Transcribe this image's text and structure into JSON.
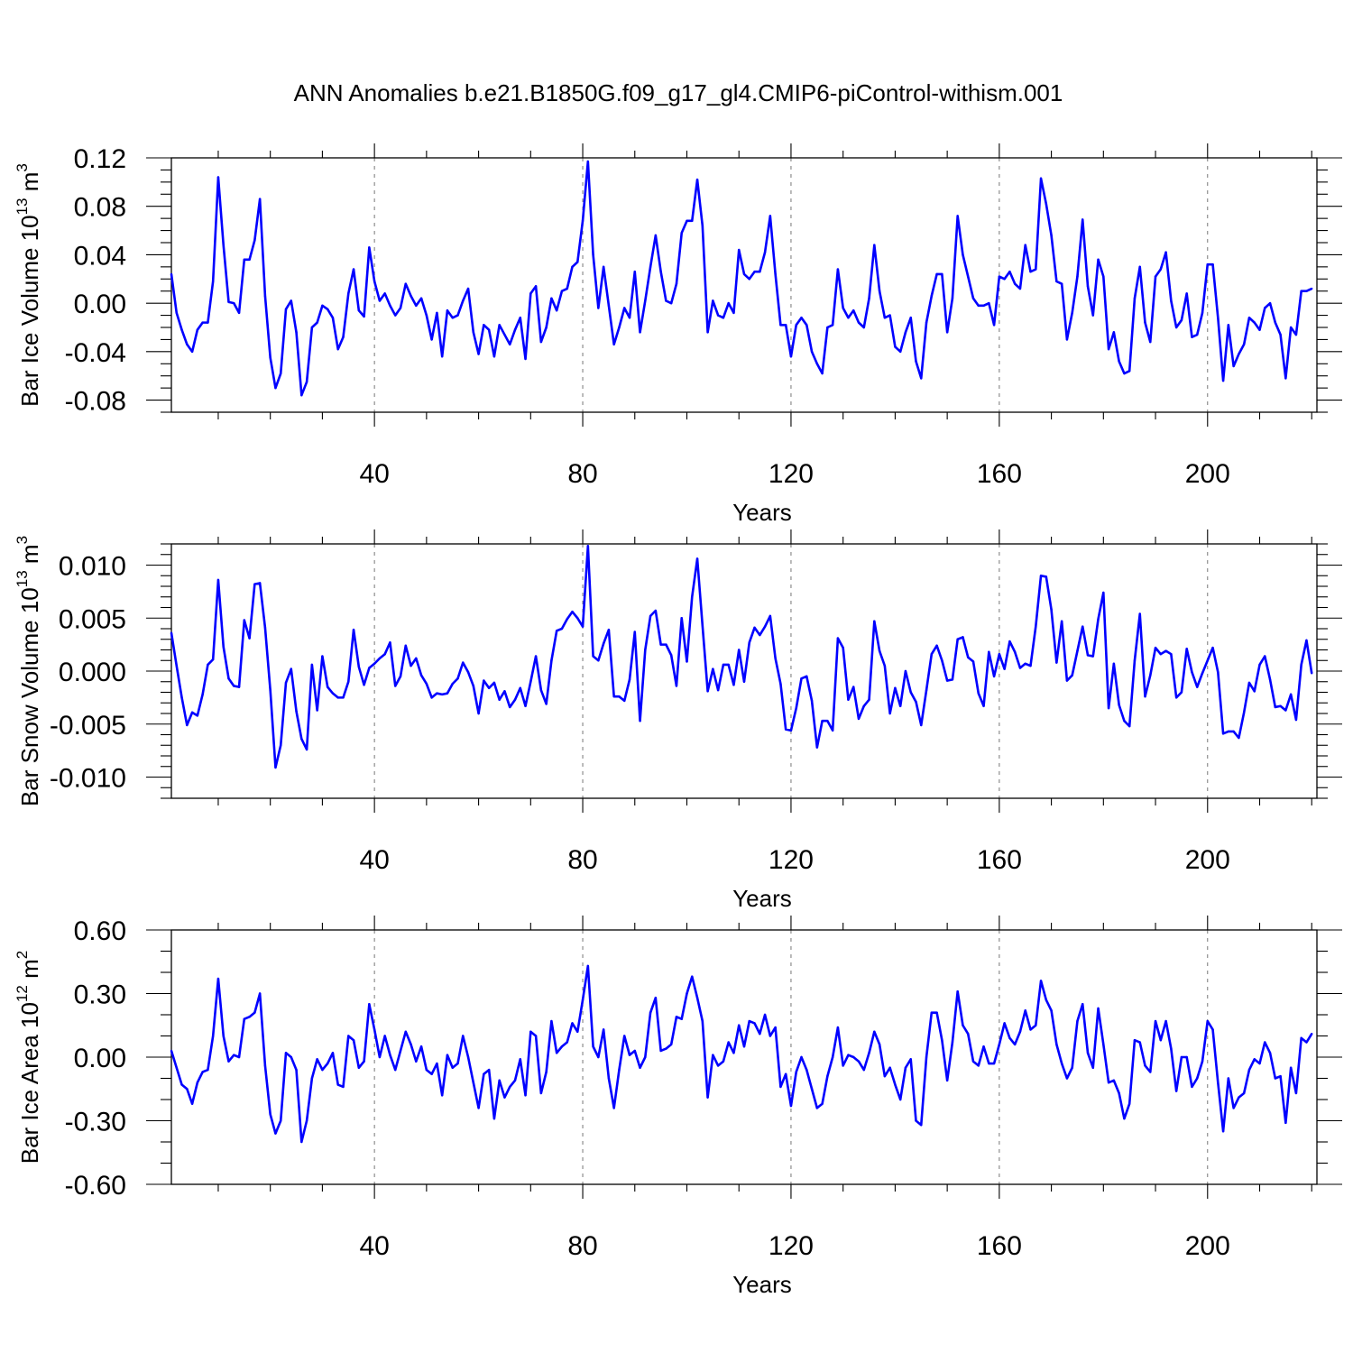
{
  "figure": {
    "title": "ANN Anomalies b.e21.B1850G.f09_g17_gl4.CMIP6-piControl-withism.001"
  },
  "chart_data": [
    {
      "type": "line",
      "ylabel_parts": [
        "Bar Ice Volume 10",
        "13",
        " m",
        "3"
      ],
      "xlabel": "Years",
      "xlim": [
        1,
        221
      ],
      "xticks": [
        40,
        80,
        120,
        160,
        200
      ],
      "xminor_step": 10,
      "ylim": [
        -0.09,
        0.12
      ],
      "yticks": [
        -0.08,
        -0.04,
        0.0,
        0.04,
        0.08,
        0.12
      ],
      "ytick_labels": [
        "-0.08",
        "-0.04",
        "0.00",
        "0.04",
        "0.08",
        "0.12"
      ],
      "yminor_step": 0.01,
      "grid": "vertical-dashed",
      "color": "#0000ff",
      "series": [
        {
          "x_start": 1,
          "values": [
            0.024,
            -0.008,
            -0.022,
            -0.034,
            -0.04,
            -0.022,
            -0.016,
            -0.016,
            0.018,
            0.104,
            0.048,
            0.001,
            0.0,
            -0.008,
            0.036,
            0.036,
            0.052,
            0.086,
            0.006,
            -0.045,
            -0.07,
            -0.058,
            -0.005,
            0.002,
            -0.024,
            -0.076,
            -0.065,
            -0.02,
            -0.016,
            -0.002,
            -0.005,
            -0.012,
            -0.038,
            -0.028,
            0.008,
            0.028,
            -0.006,
            -0.011,
            0.046,
            0.018,
            0.002,
            0.008,
            -0.002,
            -0.01,
            -0.004,
            0.016,
            0.006,
            -0.002,
            0.004,
            -0.01,
            -0.03,
            -0.008,
            -0.044,
            -0.006,
            -0.012,
            -0.01,
            0.002,
            0.012,
            -0.024,
            -0.042,
            -0.018,
            -0.022,
            -0.044,
            -0.018,
            -0.026,
            -0.034,
            -0.022,
            -0.012,
            -0.046,
            0.008,
            0.014,
            -0.032,
            -0.02,
            0.004,
            -0.006,
            0.01,
            0.012,
            0.03,
            0.034,
            0.068,
            0.117,
            0.04,
            -0.004,
            0.03,
            -0.002,
            -0.034,
            -0.02,
            -0.004,
            -0.012,
            0.026,
            -0.024,
            0.002,
            0.03,
            0.056,
            0.026,
            0.002,
            0.0,
            0.016,
            0.058,
            0.068,
            0.068,
            0.102,
            0.064,
            -0.024,
            0.002,
            -0.01,
            -0.012,
            0.0,
            -0.008,
            0.044,
            0.024,
            0.02,
            0.026,
            0.026,
            0.042,
            0.072,
            0.024,
            -0.018,
            -0.018,
            -0.044,
            -0.018,
            -0.012,
            -0.018,
            -0.04,
            -0.05,
            -0.058,
            -0.02,
            -0.018,
            0.028,
            -0.004,
            -0.012,
            -0.006,
            -0.016,
            -0.02,
            0.004,
            0.048,
            0.01,
            -0.012,
            -0.01,
            -0.036,
            -0.04,
            -0.024,
            -0.012,
            -0.048,
            -0.062,
            -0.016,
            0.006,
            0.024,
            0.024,
            -0.024,
            0.004,
            0.072,
            0.04,
            0.022,
            0.004,
            -0.002,
            -0.002,
            0.0,
            -0.018,
            0.022,
            0.02,
            0.026,
            0.016,
            0.012,
            0.048,
            0.026,
            0.028,
            0.103,
            0.082,
            0.056,
            0.018,
            0.016,
            -0.03,
            -0.008,
            0.022,
            0.069,
            0.014,
            -0.01,
            0.036,
            0.022,
            -0.038,
            -0.024,
            -0.048,
            -0.058,
            -0.056,
            0.004,
            0.03,
            -0.016,
            -0.032,
            0.022,
            0.028,
            0.042,
            0.002,
            -0.02,
            -0.014,
            0.008,
            -0.028,
            -0.026,
            -0.008,
            0.032,
            0.032,
            -0.012,
            -0.064,
            -0.018,
            -0.052,
            -0.042,
            -0.034,
            -0.012,
            -0.016,
            -0.022,
            -0.004,
            0.0,
            -0.016,
            -0.026,
            -0.062,
            -0.02,
            -0.026,
            0.01,
            0.01,
            0.012
          ]
        }
      ]
    },
    {
      "type": "line",
      "ylabel_parts": [
        "Bar Snow Volume 10",
        "13",
        " m",
        "3"
      ],
      "xlabel": "Years",
      "xlim": [
        1,
        221
      ],
      "xticks": [
        40,
        80,
        120,
        160,
        200
      ],
      "xminor_step": 10,
      "ylim": [
        -0.012,
        0.012
      ],
      "yticks": [
        -0.01,
        -0.005,
        0.0,
        0.005,
        0.01
      ],
      "ytick_labels": [
        "-0.010",
        "-0.005",
        "0.000",
        "0.005",
        "0.010"
      ],
      "yminor_step": 0.001,
      "grid": "vertical-dashed",
      "color": "#0000ff",
      "series": [
        {
          "x_start": 1,
          "values": [
            0.0036,
            0.0005,
            -0.0025,
            -0.0051,
            -0.0039,
            -0.0042,
            -0.0022,
            0.0006,
            0.0011,
            0.0086,
            0.0023,
            -0.0007,
            -0.0014,
            -0.0015,
            0.0048,
            0.0031,
            0.0082,
            0.0083,
            0.0041,
            -0.0018,
            -0.0091,
            -0.007,
            -0.0011,
            0.0002,
            -0.0038,
            -0.0064,
            -0.0074,
            0.0006,
            -0.0037,
            0.0014,
            -0.0015,
            -0.0021,
            -0.0025,
            -0.0025,
            -0.001,
            0.0039,
            0.0004,
            -0.0013,
            0.0003,
            0.0007,
            0.0012,
            0.0016,
            0.0027,
            -0.0014,
            -0.0005,
            0.0024,
            0.0005,
            0.0012,
            -0.0004,
            -0.0012,
            -0.0025,
            -0.0021,
            -0.0022,
            -0.0021,
            -0.0012,
            -0.0007,
            0.0008,
            -0.0001,
            -0.0014,
            -0.004,
            -0.0009,
            -0.0016,
            -0.0011,
            -0.0027,
            -0.0019,
            -0.0034,
            -0.0027,
            -0.0016,
            -0.0033,
            -0.001,
            0.0014,
            -0.0018,
            -0.0031,
            0.001,
            0.0038,
            0.004,
            0.0049,
            0.0056,
            0.005,
            0.0042,
            0.0118,
            0.0014,
            0.001,
            0.0026,
            0.0039,
            -0.0024,
            -0.0024,
            -0.0028,
            -0.0008,
            0.0037,
            -0.0047,
            0.002,
            0.0052,
            0.0057,
            0.0025,
            0.0025,
            0.0015,
            -0.0014,
            0.005,
            0.0009,
            0.007,
            0.0106,
            0.0043,
            -0.0019,
            0.0002,
            -0.0018,
            0.0006,
            0.0006,
            -0.0013,
            0.002,
            -0.001,
            0.0027,
            0.0041,
            0.0034,
            0.0042,
            0.0052,
            0.0012,
            -0.0012,
            -0.0055,
            -0.0056,
            -0.0035,
            -0.0007,
            -0.0005,
            -0.0028,
            -0.0072,
            -0.0047,
            -0.0047,
            -0.0056,
            0.0031,
            0.0022,
            -0.0027,
            -0.0015,
            -0.0045,
            -0.0033,
            -0.0027,
            0.0047,
            0.0019,
            0.0005,
            -0.004,
            -0.0016,
            -0.0033,
            0.0,
            -0.002,
            -0.0029,
            -0.0051,
            -0.0018,
            0.0016,
            0.0024,
            0.001,
            -0.0009,
            -0.0008,
            0.003,
            0.0032,
            0.0013,
            0.0009,
            -0.0021,
            -0.0033,
            0.0018,
            -0.0005,
            0.0016,
            0.0002,
            0.0028,
            0.0018,
            0.0003,
            0.0007,
            0.0005,
            0.0042,
            0.009,
            0.0089,
            0.0058,
            0.0008,
            0.0047,
            -0.0009,
            -0.0004,
            0.0019,
            0.0042,
            0.0015,
            0.0014,
            0.0049,
            0.0074,
            -0.0035,
            0.0007,
            -0.0032,
            -0.0047,
            -0.0052,
            0.001,
            0.0054,
            -0.0024,
            -0.0004,
            0.0022,
            0.0016,
            0.0019,
            0.0016,
            -0.0025,
            -0.002,
            0.0021,
            -0.0001,
            -0.0015,
            -0.0002,
            0.001,
            0.0022,
            -0.0001,
            -0.0059,
            -0.0057,
            -0.0057,
            -0.0063,
            -0.0039,
            -0.0011,
            -0.0019,
            0.0006,
            0.0014,
            -0.0008,
            -0.0034,
            -0.0033,
            -0.0037,
            -0.0022,
            -0.0046,
            0.0006,
            0.0029,
            -0.0002
          ]
        }
      ]
    },
    {
      "type": "line",
      "ylabel_parts": [
        "Bar Ice Area 10",
        "12",
        " m",
        "2"
      ],
      "xlabel": "Years",
      "xlim": [
        1,
        221
      ],
      "xticks": [
        40,
        80,
        120,
        160,
        200
      ],
      "xminor_step": 10,
      "ylim": [
        -0.6,
        0.6
      ],
      "yticks": [
        -0.6,
        -0.3,
        0.0,
        0.3,
        0.6
      ],
      "ytick_labels": [
        "-0.60",
        "-0.30",
        "0.00",
        "0.30",
        "0.60"
      ],
      "yminor_step": 0.1,
      "grid": "vertical-dashed",
      "color": "#0000ff",
      "series": [
        {
          "x_start": 1,
          "values": [
            0.03,
            -0.05,
            -0.13,
            -0.15,
            -0.22,
            -0.12,
            -0.07,
            -0.06,
            0.1,
            0.37,
            0.1,
            -0.02,
            0.01,
            0.0,
            0.18,
            0.19,
            0.21,
            0.3,
            -0.04,
            -0.27,
            -0.36,
            -0.3,
            0.02,
            0.0,
            -0.06,
            -0.4,
            -0.3,
            -0.1,
            -0.01,
            -0.06,
            -0.03,
            0.02,
            -0.13,
            -0.14,
            0.1,
            0.08,
            -0.05,
            -0.02,
            0.25,
            0.13,
            0.0,
            0.1,
            0.01,
            -0.06,
            0.03,
            0.12,
            0.06,
            -0.02,
            0.05,
            -0.06,
            -0.08,
            -0.03,
            -0.18,
            0.01,
            -0.05,
            -0.03,
            0.1,
            0.0,
            -0.12,
            -0.24,
            -0.08,
            -0.06,
            -0.29,
            -0.11,
            -0.19,
            -0.14,
            -0.11,
            -0.01,
            -0.18,
            0.12,
            0.1,
            -0.17,
            -0.07,
            0.17,
            0.02,
            0.05,
            0.07,
            0.16,
            0.12,
            0.27,
            0.43,
            0.05,
            0.0,
            0.13,
            -0.1,
            -0.24,
            -0.06,
            0.1,
            0.01,
            0.03,
            -0.05,
            0.0,
            0.21,
            0.28,
            0.03,
            0.04,
            0.06,
            0.19,
            0.18,
            0.3,
            0.38,
            0.28,
            0.17,
            -0.19,
            0.01,
            -0.04,
            -0.02,
            0.07,
            0.02,
            0.15,
            0.05,
            0.17,
            0.16,
            0.11,
            0.2,
            0.1,
            0.14,
            -0.14,
            -0.08,
            -0.23,
            -0.07,
            0.0,
            -0.06,
            -0.15,
            -0.24,
            -0.22,
            -0.09,
            0.0,
            0.14,
            -0.04,
            0.01,
            0.0,
            -0.02,
            -0.06,
            0.02,
            0.12,
            0.06,
            -0.09,
            -0.05,
            -0.13,
            -0.2,
            -0.05,
            -0.01,
            -0.3,
            -0.32,
            0.0,
            0.21,
            0.21,
            0.08,
            -0.11,
            0.07,
            0.31,
            0.15,
            0.11,
            -0.02,
            -0.04,
            0.05,
            -0.03,
            -0.03,
            0.06,
            0.16,
            0.09,
            0.06,
            0.12,
            0.22,
            0.13,
            0.15,
            0.36,
            0.27,
            0.22,
            0.06,
            -0.03,
            -0.1,
            -0.05,
            0.17,
            0.25,
            0.02,
            -0.05,
            0.23,
            0.06,
            -0.12,
            -0.11,
            -0.17,
            -0.29,
            -0.22,
            0.08,
            0.07,
            -0.04,
            -0.07,
            0.17,
            0.08,
            0.17,
            0.04,
            -0.16,
            0.0,
            0.0,
            -0.14,
            -0.1,
            -0.02,
            0.17,
            0.13,
            -0.12,
            -0.35,
            -0.1,
            -0.24,
            -0.19,
            -0.17,
            -0.06,
            -0.01,
            -0.03,
            0.07,
            0.02,
            -0.1,
            -0.09,
            -0.31,
            -0.05,
            -0.17,
            0.09,
            0.07,
            0.11
          ]
        }
      ]
    }
  ]
}
